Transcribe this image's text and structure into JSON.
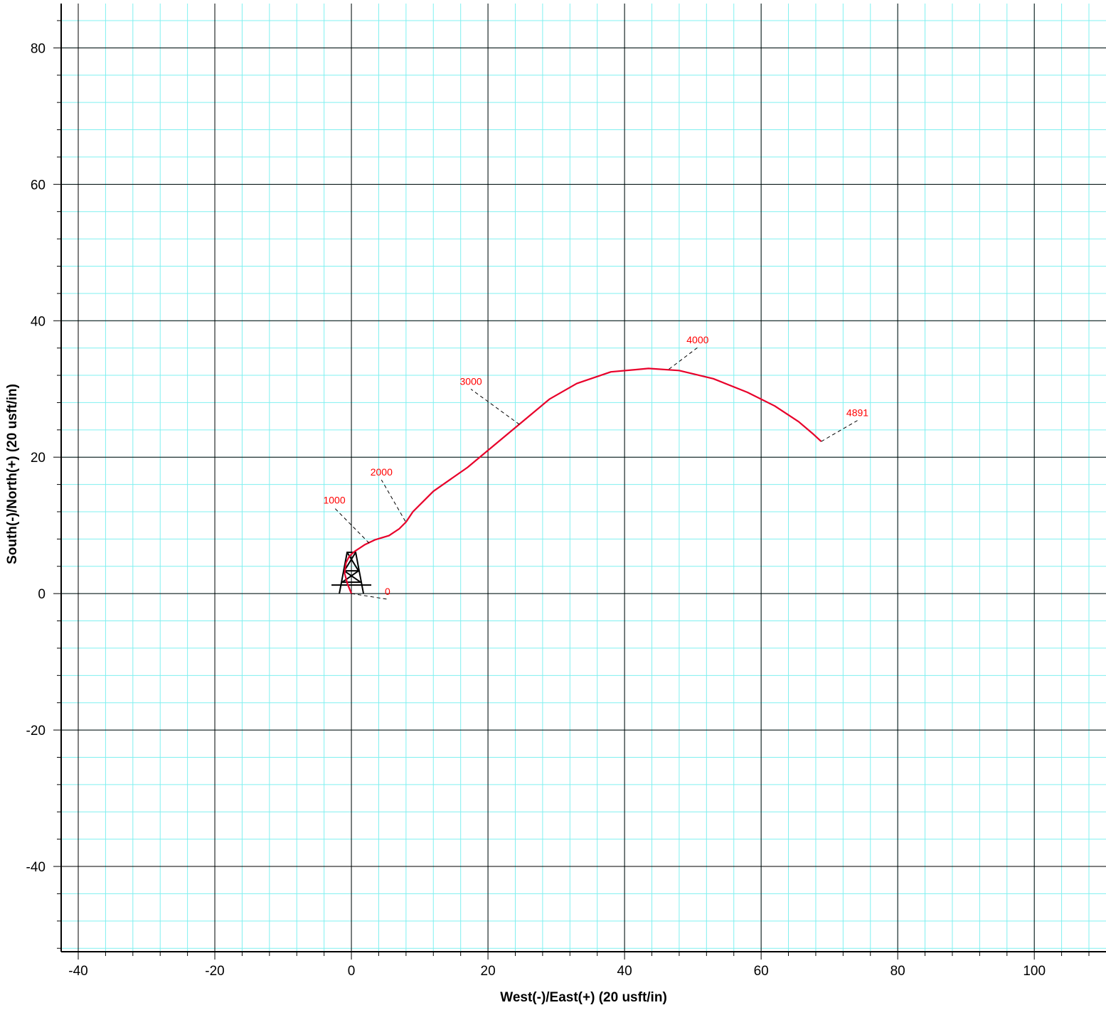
{
  "chart_data": {
    "type": "line",
    "xlabel": "West(-)/East(+) (20 usft/in)",
    "ylabel": "South(-)/North(+) (20 usft/in)",
    "xlim": [
      -42.5,
      110.5
    ],
    "ylim": [
      -52.5,
      86.5
    ],
    "x_ticks": [
      -40,
      -20,
      0,
      20,
      40,
      60,
      80,
      100
    ],
    "y_ticks": [
      -40,
      -20,
      0,
      20,
      40,
      60,
      80
    ],
    "x_tick_labels": [
      "-40",
      "-20",
      "0",
      "20",
      "40",
      "60",
      "80",
      "100"
    ],
    "y_tick_labels": [
      "-40",
      "-20",
      "0",
      "20",
      "40",
      "60",
      "80"
    ],
    "minor_grid_step": 4,
    "grid": true,
    "colors": {
      "major_grid": "#000000",
      "minor_grid": "#80f0f0",
      "trajectory": "#e8002a",
      "labels": "#ff0000"
    },
    "series": [
      {
        "x": [
          0,
          -0.6,
          -1.0,
          -0.8,
          -0.3,
          0.5,
          2.0,
          3.5,
          5.5,
          7.0,
          8.0,
          9.0,
          12.0,
          17.0,
          20.0,
          23.0,
          26.0,
          29.0,
          33.0,
          38.0,
          43.5,
          48.0,
          53.0,
          58.0,
          62.0,
          65.5,
          67.5,
          68.8
        ],
        "y": [
          0,
          1.5,
          3.0,
          4.5,
          5.5,
          6.2,
          7.2,
          7.9,
          8.5,
          9.5,
          10.5,
          12.0,
          15.0,
          18.5,
          21.0,
          23.5,
          26.0,
          28.5,
          30.8,
          32.5,
          33.0,
          32.7,
          31.5,
          29.5,
          27.5,
          25.2,
          23.5,
          22.3
        ]
      }
    ],
    "md_annotations": [
      {
        "label": "0",
        "px": [
          0,
          0
        ],
        "tx": [
          5.3,
          -0.2
        ]
      },
      {
        "label": "1000",
        "px": [
          2.6,
          7.4
        ],
        "tx": [
          -2.5,
          13.2
        ]
      },
      {
        "label": "2000",
        "px": [
          7.9,
          10.6
        ],
        "tx": [
          4.4,
          17.3
        ]
      },
      {
        "label": "3000",
        "px": [
          24.6,
          24.8
        ],
        "tx": [
          17.5,
          30.6
        ]
      },
      {
        "label": "4000",
        "px": [
          46.5,
          32.9
        ],
        "tx": [
          50.7,
          36.7
        ]
      },
      {
        "label": "4891",
        "px": [
          68.8,
          22.3
        ],
        "tx": [
          74.1,
          26.0
        ]
      }
    ],
    "rig_symbol": {
      "x": 0,
      "y": 0
    }
  }
}
